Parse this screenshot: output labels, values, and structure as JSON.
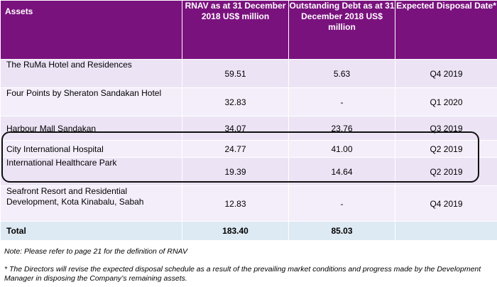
{
  "table": {
    "headers": [
      "Assets",
      "RNAV as at 31 December 2018 US$ million",
      "Outstanding Debt as at 31 December 2018 US$ million",
      "Expected Disposal Date*"
    ],
    "rows": [
      {
        "asset": "The RuMa Hotel and Residences",
        "rnav": "59.51",
        "debt": "5.63",
        "date": "Q4 2019"
      },
      {
        "asset": "Four Points by Sheraton Sandakan Hotel",
        "rnav": "32.83",
        "debt": "-",
        "date": "Q1 2020"
      },
      {
        "asset": "Harbour Mall Sandakan",
        "rnav": "34.07",
        "debt": "23.76",
        "date": "Q3 2019"
      },
      {
        "asset": "City International Hospital",
        "rnav": "24.77",
        "debt": "41.00",
        "date": "Q2 2019"
      },
      {
        "asset": "International Healthcare Park",
        "rnav": "19.39",
        "debt": "14.64",
        "date": "Q2 2019"
      },
      {
        "asset": "Seafront Resort and Residential Development, Kota Kinabalu, Sabah",
        "rnav": "12.83",
        "debt": "-",
        "date": "Q4 2019"
      }
    ],
    "total": {
      "label": "Total",
      "rnav": "183.40",
      "debt": "85.03",
      "date": ""
    }
  },
  "notes": {
    "note1": "Note: Please refer to page 21 for the definition of RNAV",
    "note2": "* The Directors will revise the expected disposal schedule as a result of the prevailing market conditions and progress made by the Development Manager in disposing the Company’s remaining assets."
  },
  "colors": {
    "header_bg": "#7a127e",
    "row_a": "#ece3f5",
    "row_b": "#f4eefa",
    "total_bg": "#dde9f3"
  }
}
